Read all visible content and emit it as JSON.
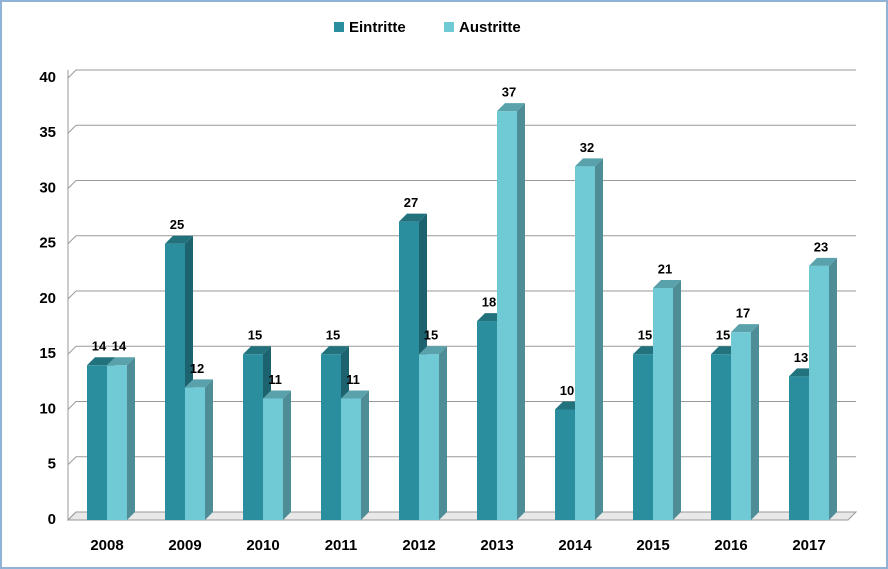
{
  "chart_data": {
    "type": "bar",
    "categories": [
      "2008",
      "2009",
      "2010",
      "2011",
      "2012",
      "2013",
      "2014",
      "2015",
      "2016",
      "2017"
    ],
    "series": [
      {
        "name": "Eintritte",
        "color": "#2a8e9e",
        "values": [
          14,
          25,
          15,
          15,
          27,
          18,
          10,
          15,
          15,
          13
        ]
      },
      {
        "name": "Austritte",
        "color": "#6fcad6",
        "values": [
          14,
          12,
          11,
          11,
          15,
          37,
          32,
          21,
          17,
          23
        ]
      }
    ],
    "ylim": [
      0,
      40
    ],
    "yticks": [
      0,
      5,
      10,
      15,
      20,
      25,
      30,
      35,
      40
    ],
    "grid": true,
    "legend": "top"
  }
}
